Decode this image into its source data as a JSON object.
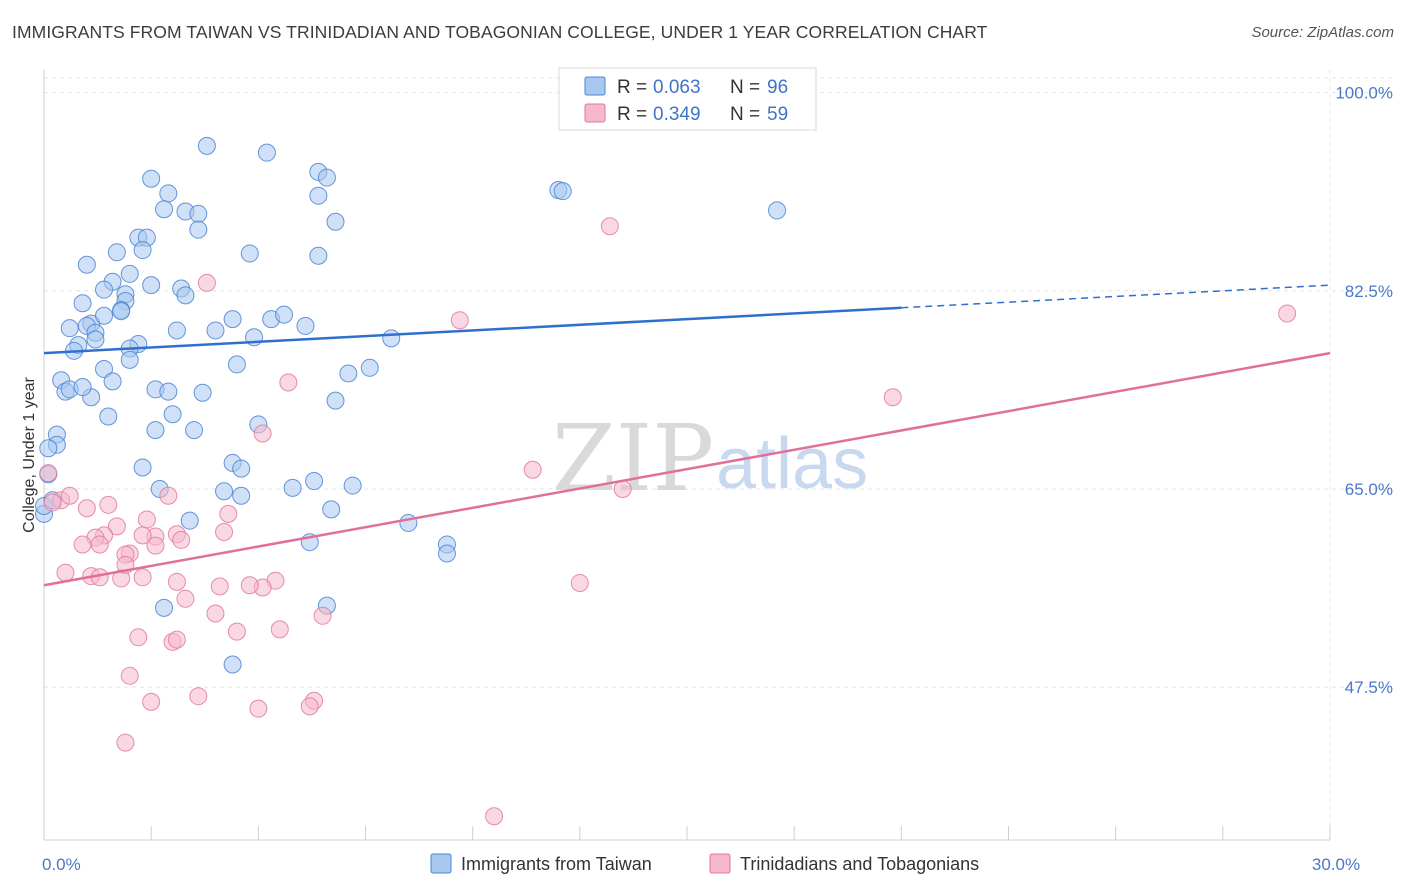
{
  "header": {
    "title": "IMMIGRANTS FROM TAIWAN VS TRINIDADIAN AND TOBAGONIAN COLLEGE, UNDER 1 YEAR CORRELATION CHART",
    "source": "Source: ZipAtlas.com"
  },
  "watermark": {
    "zip": "ZIP",
    "atlas": "atlas"
  },
  "colors": {
    "taiwan_fill": "#a9c8f0",
    "taiwan_stroke": "#4a84d4",
    "taiwan_line": "#2f6fce",
    "trini_fill": "#f5b8cc",
    "trini_stroke": "#e07a9c",
    "trini_line": "#e0709a",
    "grid": "#e4e4e4",
    "axis_text": "#4a78c8"
  },
  "legend": {
    "rows": [
      {
        "r_label": "R = ",
        "r_value": "0.063",
        "n_label": "N = ",
        "n_value": "96"
      },
      {
        "r_label": "R = ",
        "r_value": "0.349",
        "n_label": "N = ",
        "n_value": "59"
      }
    ]
  },
  "chart_data": {
    "type": "scatter",
    "title": "IMMIGRANTS FROM TAIWAN VS TRINIDADIAN AND TOBAGONIAN COLLEGE, UNDER 1 YEAR CORRELATION CHART",
    "xlabel": "",
    "ylabel": "College, Under 1 year",
    "xlim": [
      0,
      30
    ],
    "ylim": [
      34,
      102
    ],
    "x_ticks": [
      {
        "value": 0,
        "label": "0.0%"
      },
      {
        "value": 30,
        "label": "30.0%"
      }
    ],
    "y_ticks": [
      {
        "value": 100,
        "label": "100.0%"
      },
      {
        "value": 82.5,
        "label": "82.5%"
      },
      {
        "value": 65,
        "label": "65.0%"
      },
      {
        "value": 47.5,
        "label": "47.5%"
      }
    ],
    "grid": true,
    "legend_position": "top-center",
    "series": [
      {
        "name": "Immigrants from Taiwan",
        "r": 0.063,
        "n": 96,
        "trend": {
          "x0": 0,
          "y0": 77.0,
          "x1": 20.0,
          "y1": 81.0,
          "x_end": 30,
          "y_end": 83.0
        },
        "points": [
          [
            3.8,
            95.3
          ],
          [
            5.2,
            94.7
          ],
          [
            2.5,
            92.4
          ],
          [
            6.4,
            93.0
          ],
          [
            6.6,
            92.5
          ],
          [
            2.9,
            91.1
          ],
          [
            6.4,
            90.9
          ],
          [
            12.0,
            91.4
          ],
          [
            12.1,
            91.3
          ],
          [
            17.1,
            89.6
          ],
          [
            2.8,
            89.7
          ],
          [
            3.3,
            89.5
          ],
          [
            3.6,
            89.3
          ],
          [
            6.8,
            88.6
          ],
          [
            3.6,
            87.9
          ],
          [
            2.2,
            87.2
          ],
          [
            2.4,
            87.2
          ],
          [
            2.3,
            86.1
          ],
          [
            1.7,
            85.9
          ],
          [
            4.8,
            85.8
          ],
          [
            6.4,
            85.6
          ],
          [
            1.0,
            84.8
          ],
          [
            2.0,
            84.0
          ],
          [
            1.6,
            83.3
          ],
          [
            2.5,
            83.0
          ],
          [
            3.2,
            82.7
          ],
          [
            1.4,
            82.6
          ],
          [
            1.9,
            82.2
          ],
          [
            1.9,
            81.6
          ],
          [
            3.3,
            82.1
          ],
          [
            0.9,
            81.4
          ],
          [
            1.8,
            80.8
          ],
          [
            1.8,
            80.7
          ],
          [
            4.4,
            80.0
          ],
          [
            5.3,
            80.0
          ],
          [
            5.6,
            80.4
          ],
          [
            1.1,
            79.6
          ],
          [
            1.0,
            79.4
          ],
          [
            0.6,
            79.2
          ],
          [
            3.1,
            79.0
          ],
          [
            4.0,
            79.0
          ],
          [
            6.1,
            79.4
          ],
          [
            8.1,
            78.3
          ],
          [
            1.2,
            78.8
          ],
          [
            1.2,
            78.2
          ],
          [
            0.8,
            77.7
          ],
          [
            2.2,
            77.8
          ],
          [
            2.0,
            77.4
          ],
          [
            0.7,
            77.2
          ],
          [
            4.5,
            76.0
          ],
          [
            1.4,
            75.6
          ],
          [
            7.1,
            75.2
          ],
          [
            7.6,
            75.7
          ],
          [
            0.4,
            74.6
          ],
          [
            1.6,
            74.5
          ],
          [
            2.6,
            73.8
          ],
          [
            2.9,
            73.6
          ],
          [
            3.7,
            73.5
          ],
          [
            0.5,
            73.6
          ],
          [
            0.6,
            73.8
          ],
          [
            1.1,
            73.1
          ],
          [
            6.8,
            72.8
          ],
          [
            3.0,
            71.6
          ],
          [
            1.5,
            71.4
          ],
          [
            2.6,
            70.2
          ],
          [
            3.5,
            70.2
          ],
          [
            0.3,
            69.8
          ],
          [
            0.3,
            68.9
          ],
          [
            0.1,
            68.6
          ],
          [
            4.4,
            67.3
          ],
          [
            4.6,
            66.8
          ],
          [
            2.3,
            66.9
          ],
          [
            0.1,
            66.3
          ],
          [
            6.3,
            65.7
          ],
          [
            7.2,
            65.3
          ],
          [
            5.8,
            65.1
          ],
          [
            2.7,
            65.0
          ],
          [
            4.6,
            64.4
          ],
          [
            6.7,
            63.2
          ],
          [
            0.0,
            62.8
          ],
          [
            3.4,
            62.2
          ],
          [
            8.5,
            62.0
          ],
          [
            9.4,
            60.1
          ],
          [
            9.4,
            59.3
          ],
          [
            6.6,
            54.7
          ],
          [
            2.8,
            54.5
          ],
          [
            4.4,
            49.5
          ],
          [
            0.0,
            63.5
          ],
          [
            0.2,
            64.0
          ],
          [
            0.9,
            74.0
          ],
          [
            1.4,
            80.3
          ],
          [
            2.0,
            76.4
          ],
          [
            5.0,
            70.7
          ],
          [
            6.2,
            60.3
          ],
          [
            4.2,
            64.8
          ],
          [
            4.9,
            78.4
          ]
        ]
      },
      {
        "name": "Trinidadians and Tobagonians",
        "r": 0.349,
        "n": 59,
        "trend": {
          "x0": 0,
          "y0": 56.5,
          "x1": 30,
          "y1": 77.0
        },
        "points": [
          [
            13.2,
            88.2
          ],
          [
            3.8,
            83.2
          ],
          [
            29.0,
            80.5
          ],
          [
            9.7,
            79.9
          ],
          [
            5.7,
            74.4
          ],
          [
            19.8,
            73.1
          ],
          [
            5.1,
            69.9
          ],
          [
            11.4,
            66.7
          ],
          [
            13.5,
            65.0
          ],
          [
            0.1,
            66.4
          ],
          [
            0.4,
            64.0
          ],
          [
            0.6,
            64.4
          ],
          [
            0.2,
            63.8
          ],
          [
            1.5,
            63.6
          ],
          [
            2.9,
            64.4
          ],
          [
            1.0,
            63.3
          ],
          [
            4.3,
            62.8
          ],
          [
            2.4,
            62.3
          ],
          [
            1.7,
            61.7
          ],
          [
            3.1,
            61.0
          ],
          [
            3.2,
            60.5
          ],
          [
            1.4,
            60.9
          ],
          [
            1.2,
            60.7
          ],
          [
            2.6,
            60.8
          ],
          [
            4.2,
            61.2
          ],
          [
            0.9,
            60.1
          ],
          [
            2.6,
            60.0
          ],
          [
            1.3,
            60.1
          ],
          [
            2.0,
            59.3
          ],
          [
            1.9,
            59.2
          ],
          [
            0.5,
            57.6
          ],
          [
            1.1,
            57.3
          ],
          [
            2.3,
            57.2
          ],
          [
            1.3,
            57.2
          ],
          [
            1.8,
            57.1
          ],
          [
            3.1,
            56.8
          ],
          [
            4.1,
            56.4
          ],
          [
            5.4,
            56.9
          ],
          [
            5.1,
            56.3
          ],
          [
            4.8,
            56.5
          ],
          [
            12.5,
            56.7
          ],
          [
            3.3,
            55.3
          ],
          [
            4.0,
            54.0
          ],
          [
            6.5,
            53.8
          ],
          [
            4.5,
            52.4
          ],
          [
            5.5,
            52.6
          ],
          [
            2.2,
            51.9
          ],
          [
            3.0,
            51.5
          ],
          [
            3.1,
            51.7
          ],
          [
            2.0,
            48.5
          ],
          [
            3.6,
            46.7
          ],
          [
            6.3,
            46.3
          ],
          [
            2.5,
            46.2
          ],
          [
            6.2,
            45.8
          ],
          [
            5.0,
            45.6
          ],
          [
            1.9,
            42.6
          ],
          [
            10.5,
            36.1
          ],
          [
            1.9,
            58.3
          ],
          [
            2.3,
            60.9
          ]
        ]
      }
    ]
  }
}
